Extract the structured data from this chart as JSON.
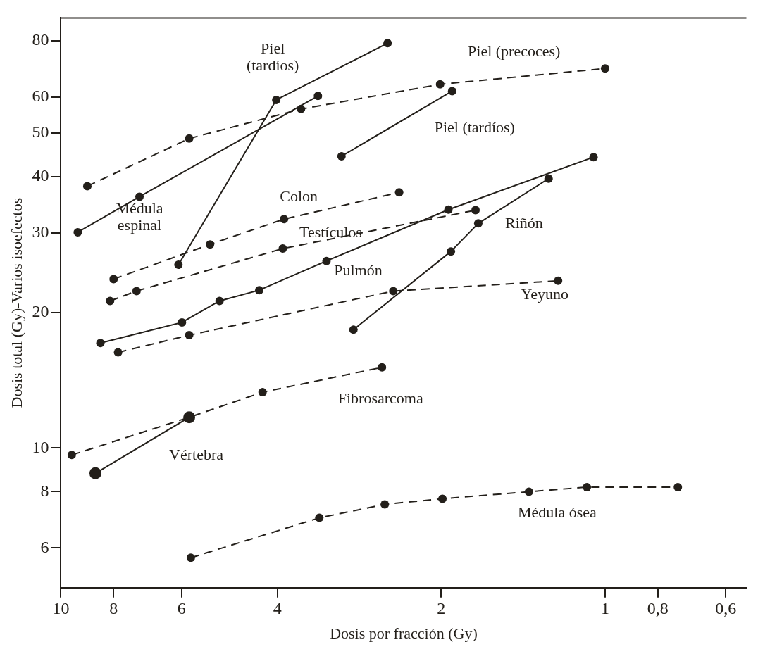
{
  "chart_data": {
    "type": "line",
    "xlabel": "Dosis por fracción (Gy)",
    "ylabel": "Dosis total (Gy)-Varios isoefectos",
    "log": "xy",
    "marker": "circle",
    "xlim": [
      10,
      0.55
    ],
    "xticks": [
      10,
      8,
      6,
      4,
      2,
      1,
      {
        "value": 0.8,
        "label": "0,8"
      },
      {
        "value": 0.6,
        "label": "0,6"
      }
    ],
    "ylim": [
      4.9,
      90
    ],
    "yticks": [
      6,
      8,
      10,
      20,
      30,
      40,
      50,
      60,
      80
    ],
    "series": [
      {
        "name": "Piel (precoces)",
        "color": "#231f1a",
        "line_style": "dashed",
        "x": [
          8.94,
          5.81,
          3.62,
          2.01,
          1.0
        ],
        "values": [
          38.1,
          48.6,
          56.5,
          64.1,
          69.5
        ]
      },
      {
        "name": "Médula espinal",
        "color": "#231f1a",
        "line_style": "solid",
        "x": [
          9.31,
          7.17,
          3.37
        ],
        "values": [
          30.1,
          36.1,
          60.4
        ]
      },
      {
        "name": "Piel (tardíos)",
        "color": "#231f1a",
        "line_style": "solid",
        "x": [
          6.08,
          4.02,
          2.51
        ],
        "values": [
          25.5,
          59.2,
          79.1
        ]
      },
      {
        "name": "Piel (tardíos)",
        "color": "#231f1a",
        "line_style": "solid",
        "x": [
          3.05,
          1.91
        ],
        "values": [
          44.4,
          61.9
        ]
      },
      {
        "name": "Colon",
        "color": "#231f1a",
        "line_style": "dashed",
        "x": [
          8.0,
          5.32,
          3.89,
          2.39
        ],
        "values": [
          23.7,
          28.3,
          32.2,
          36.9
        ]
      },
      {
        "name": "Testículos",
        "color": "#231f1a",
        "line_style": "dashed",
        "x": [
          8.12,
          7.26,
          3.91,
          1.73
        ],
        "values": [
          21.2,
          22.3,
          27.7,
          33.7
        ]
      },
      {
        "name": "Pulmón",
        "color": "#231f1a",
        "line_style": "solid",
        "x": [
          8.46,
          5.99,
          5.11,
          4.32,
          3.25,
          1.94,
          1.05
        ],
        "values": [
          17.1,
          19.0,
          21.2,
          22.4,
          26.0,
          33.8,
          44.2
        ]
      },
      {
        "name": "Yeyuno",
        "color": "#231f1a",
        "line_style": "dashed",
        "x": [
          7.85,
          5.81,
          2.45,
          1.22
        ],
        "values": [
          16.3,
          17.8,
          22.3,
          23.5
        ]
      },
      {
        "name": "Riñón",
        "color": "#231f1a",
        "line_style": "solid",
        "x": [
          2.9,
          1.92,
          1.71,
          1.27
        ],
        "values": [
          18.3,
          27.3,
          31.5,
          39.6
        ]
      },
      {
        "name": "Fibrosarcoma",
        "color": "#231f1a",
        "line_style": "dashed",
        "x": [
          9.55,
          5.81,
          4.26,
          2.57
        ],
        "values": [
          9.65,
          11.7,
          13.3,
          15.1
        ]
      },
      {
        "name": "Vértebra",
        "color": "#231f1a",
        "line_style": "solid",
        "x": [
          8.64,
          5.81
        ],
        "values": [
          8.79,
          11.7
        ]
      },
      {
        "name": "Médula ósea",
        "color": "#231f1a",
        "line_style": "dashed",
        "x": [
          5.77,
          3.35,
          2.54,
          1.99,
          1.38,
          1.08,
          0.735
        ],
        "values": [
          5.71,
          7.0,
          7.5,
          7.72,
          8.0,
          8.19,
          8.19
        ]
      }
    ]
  }
}
